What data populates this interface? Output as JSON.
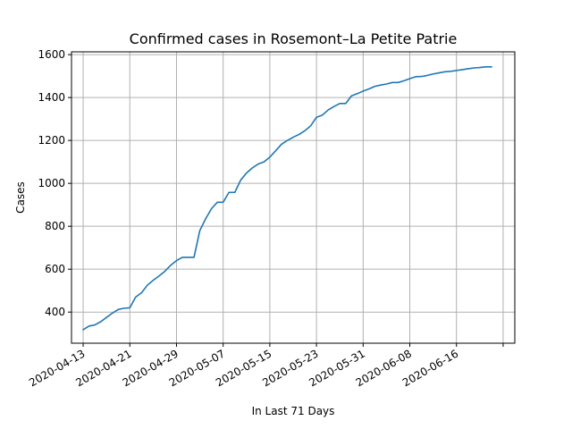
{
  "chart_data": {
    "type": "line",
    "title": "Confirmed cases in Rosemont–La Petite Patrie",
    "xlabel": "In Last 71 Days",
    "ylabel": "Cases",
    "x_tick_labels": [
      "2020-04-13",
      "2020-04-21",
      "2020-04-29",
      "2020-05-07",
      "2020-05-15",
      "2020-05-23",
      "2020-05-31",
      "2020-06-08",
      "2020-06-16"
    ],
    "x_ticks": [
      "2020-04-13",
      "2020-04-21",
      "2020-04-29",
      "2020-05-07",
      "2020-05-15",
      "2020-05-23",
      "2020-05-31",
      "2020-06-08",
      "2020-06-16",
      "2020-06-24"
    ],
    "xlim": [
      "2020-04-11",
      "2020-06-26"
    ],
    "y_ticks": [
      400,
      600,
      800,
      1000,
      1200,
      1400,
      1600
    ],
    "ylim": [
      255,
      1613
    ],
    "grid": true,
    "line_color": "#1f77b4",
    "series": [
      {
        "x": [
          "2020-04-13",
          "2020-04-14",
          "2020-04-15",
          "2020-04-16",
          "2020-04-17",
          "2020-04-18",
          "2020-04-19",
          "2020-04-20",
          "2020-04-21",
          "2020-04-22",
          "2020-04-23",
          "2020-04-24",
          "2020-04-25",
          "2020-04-26",
          "2020-04-27",
          "2020-04-28",
          "2020-04-29",
          "2020-04-30",
          "2020-05-01",
          "2020-05-02",
          "2020-05-03",
          "2020-05-04",
          "2020-05-05",
          "2020-05-06",
          "2020-05-07",
          "2020-05-08",
          "2020-05-09",
          "2020-05-10",
          "2020-05-11",
          "2020-05-12",
          "2020-05-13",
          "2020-05-14",
          "2020-05-15",
          "2020-05-16",
          "2020-05-17",
          "2020-05-18",
          "2020-05-19",
          "2020-05-20",
          "2020-05-21",
          "2020-05-22",
          "2020-05-23",
          "2020-05-24",
          "2020-05-25",
          "2020-05-26",
          "2020-05-27",
          "2020-05-28",
          "2020-05-29",
          "2020-05-30",
          "2020-05-31",
          "2020-06-01",
          "2020-06-02",
          "2020-06-03",
          "2020-06-04",
          "2020-06-05",
          "2020-06-06",
          "2020-06-07",
          "2020-06-08",
          "2020-06-09",
          "2020-06-10",
          "2020-06-11",
          "2020-06-12",
          "2020-06-13",
          "2020-06-14",
          "2020-06-15",
          "2020-06-16",
          "2020-06-17",
          "2020-06-18",
          "2020-06-19",
          "2020-06-20",
          "2020-06-21",
          "2020-06-22"
        ],
        "y": [
          318,
          335,
          340,
          355,
          375,
          395,
          412,
          418,
          420,
          470,
          490,
          525,
          548,
          568,
          590,
          618,
          640,
          655,
          655,
          655,
          780,
          835,
          882,
          912,
          912,
          958,
          958,
          1015,
          1048,
          1072,
          1090,
          1100,
          1122,
          1152,
          1182,
          1200,
          1215,
          1228,
          1245,
          1268,
          1308,
          1318,
          1342,
          1358,
          1372,
          1372,
          1408,
          1418,
          1430,
          1440,
          1452,
          1458,
          1463,
          1470,
          1470,
          1478,
          1488,
          1497,
          1498,
          1503,
          1510,
          1515,
          1520,
          1522,
          1526,
          1530,
          1534,
          1538,
          1540,
          1543,
          1543
        ]
      }
    ]
  }
}
